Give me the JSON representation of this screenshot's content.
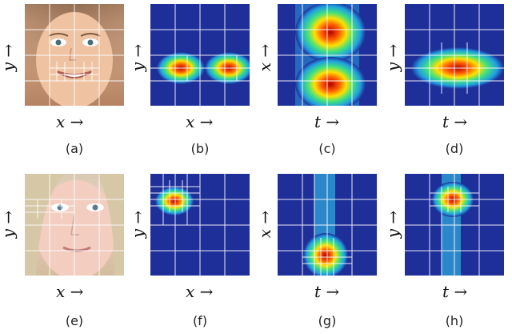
{
  "figure": {
    "rows": [
      {
        "panels": [
          {
            "caption": "(a)",
            "xlabel": "x →",
            "ylabel": "y →",
            "kind": "face",
            "variant": 1
          },
          {
            "caption": "(b)",
            "xlabel": "x →",
            "ylabel": "y →",
            "kind": "heatmap-xy-two-blobs"
          },
          {
            "caption": "(c)",
            "xlabel": "t →",
            "ylabel": "x →",
            "kind": "heatmap-xt-two-blobs"
          },
          {
            "caption": "(d)",
            "xlabel": "t →",
            "ylabel": "y →",
            "kind": "heatmap-yt-one-blob"
          }
        ]
      },
      {
        "panels": [
          {
            "caption": "(e)",
            "xlabel": "x →",
            "ylabel": "y →",
            "kind": "face",
            "variant": 2
          },
          {
            "caption": "(f)",
            "xlabel": "x →",
            "ylabel": "y →",
            "kind": "heatmap-xy-small-blob"
          },
          {
            "caption": "(g)",
            "xlabel": "t →",
            "ylabel": "x →",
            "kind": "heatmap-xt-bottom-blob"
          },
          {
            "caption": "(h)",
            "xlabel": "t →",
            "ylabel": "y →",
            "kind": "heatmap-yt-top-blob"
          }
        ]
      }
    ],
    "colors": {
      "bg": "#ffffff",
      "heat_low": "#1f2f9a",
      "heat_high": "#b30000",
      "grid": "#ffffff"
    }
  }
}
